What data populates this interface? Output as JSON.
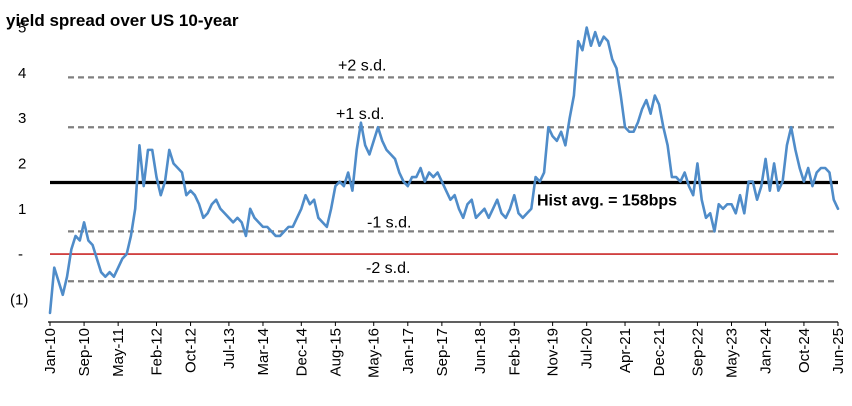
{
  "chart_data": {
    "type": "line",
    "title": "yield spread over US 10-year",
    "xlabel": "",
    "ylabel": "",
    "ylim": [
      -1.5,
      5.3
    ],
    "y_ticks": [
      {
        "v": 5,
        "label": "5"
      },
      {
        "v": 4,
        "label": "4"
      },
      {
        "v": 3,
        "label": "3"
      },
      {
        "v": 2,
        "label": "2"
      },
      {
        "v": 1,
        "label": "1"
      },
      {
        "v": 0,
        "label": "-"
      },
      {
        "v": -1,
        "label": "(1)"
      }
    ],
    "x_ticks": [
      "Jan-10",
      "Sep-10",
      "May-11",
      "Feb-12",
      "Oct-12",
      "Jul-13",
      "Mar-14",
      "Dec-14",
      "Aug-15",
      "May-16",
      "Jan-17",
      "Sep-17",
      "Jun-18",
      "Feb-19",
      "Nov-19",
      "Jul-20",
      "Apr-21",
      "Dec-21",
      "Sep-22",
      "May-23",
      "Jan-24",
      "Oct-24",
      "Jun-25"
    ],
    "colors": {
      "series": "#4f8cc9",
      "mean": "#000000",
      "sd_lines": "#808080",
      "zero": "#c00000"
    },
    "reference_lines": [
      {
        "label": "+2 s.d.",
        "value": 3.9,
        "style": "dashed"
      },
      {
        "label": "+1 s.d.",
        "value": 2.8,
        "style": "dashed"
      },
      {
        "label": "Hist avg. = 158bps",
        "value": 1.58,
        "style": "solid-bold"
      },
      {
        "label": "-1 s.d.",
        "value": 0.5,
        "style": "dashed"
      },
      {
        "label": "-2 s.d.",
        "value": -0.6,
        "style": "dashed"
      },
      {
        "label": "",
        "value": 0,
        "style": "zero"
      }
    ],
    "series": [
      {
        "name": "",
        "points": [
          [
            "Jan-10",
            -1.3
          ],
          [
            "Feb-10",
            -0.3
          ],
          [
            "Mar-10",
            -0.6
          ],
          [
            "Apr-10",
            -0.9
          ],
          [
            "May-10",
            -0.5
          ],
          [
            "Jun-10",
            0.1
          ],
          [
            "Jul-10",
            0.4
          ],
          [
            "Aug-10",
            0.3
          ],
          [
            "Sep-10",
            0.7
          ],
          [
            "Oct-10",
            0.3
          ],
          [
            "Nov-10",
            0.2
          ],
          [
            "Dec-10",
            -0.1
          ],
          [
            "Jan-11",
            -0.4
          ],
          [
            "Feb-11",
            -0.5
          ],
          [
            "Mar-11",
            -0.4
          ],
          [
            "Apr-11",
            -0.5
          ],
          [
            "May-11",
            -0.3
          ],
          [
            "Jun-11",
            -0.1
          ],
          [
            "Jul-11",
            0.0
          ],
          [
            "Aug-11",
            0.4
          ],
          [
            "Sep-11",
            1.0
          ],
          [
            "Oct-11",
            2.4
          ],
          [
            "Nov-11",
            1.5
          ],
          [
            "Dec-11",
            2.3
          ],
          [
            "Jan-12",
            2.3
          ],
          [
            "Feb-12",
            1.7
          ],
          [
            "Mar-12",
            1.3
          ],
          [
            "Apr-12",
            1.6
          ],
          [
            "May-12",
            2.3
          ],
          [
            "Jun-12",
            2.0
          ],
          [
            "Jul-12",
            1.9
          ],
          [
            "Aug-12",
            1.8
          ],
          [
            "Sep-12",
            1.3
          ],
          [
            "Oct-12",
            1.4
          ],
          [
            "Nov-12",
            1.3
          ],
          [
            "Dec-12",
            1.1
          ],
          [
            "Jan-13",
            0.8
          ],
          [
            "Feb-13",
            0.9
          ],
          [
            "Mar-13",
            1.1
          ],
          [
            "Apr-13",
            1.2
          ],
          [
            "May-13",
            1.0
          ],
          [
            "Jun-13",
            0.9
          ],
          [
            "Jul-13",
            0.8
          ],
          [
            "Aug-13",
            0.7
          ],
          [
            "Sep-13",
            0.8
          ],
          [
            "Oct-13",
            0.7
          ],
          [
            "Nov-13",
            0.4
          ],
          [
            "Dec-13",
            1.0
          ],
          [
            "Jan-14",
            0.8
          ],
          [
            "Feb-14",
            0.7
          ],
          [
            "Mar-14",
            0.6
          ],
          [
            "Apr-14",
            0.6
          ],
          [
            "May-14",
            0.5
          ],
          [
            "Jun-14",
            0.4
          ],
          [
            "Jul-14",
            0.4
          ],
          [
            "Aug-14",
            0.5
          ],
          [
            "Sep-14",
            0.6
          ],
          [
            "Oct-14",
            0.6
          ],
          [
            "Nov-14",
            0.8
          ],
          [
            "Dec-14",
            1.0
          ],
          [
            "Jan-15",
            1.3
          ],
          [
            "Feb-15",
            1.1
          ],
          [
            "Mar-15",
            1.2
          ],
          [
            "Apr-15",
            0.8
          ],
          [
            "May-15",
            0.7
          ],
          [
            "Jun-15",
            0.6
          ],
          [
            "Jul-15",
            1.0
          ],
          [
            "Aug-15",
            1.5
          ],
          [
            "Sep-15",
            1.6
          ],
          [
            "Oct-15",
            1.5
          ],
          [
            "Nov-15",
            1.8
          ],
          [
            "Dec-15",
            1.4
          ],
          [
            "Jan-16",
            2.3
          ],
          [
            "Feb-16",
            2.9
          ],
          [
            "Mar-16",
            2.4
          ],
          [
            "Apr-16",
            2.2
          ],
          [
            "May-16",
            2.5
          ],
          [
            "Jun-16",
            2.8
          ],
          [
            "Jul-16",
            2.5
          ],
          [
            "Aug-16",
            2.3
          ],
          [
            "Sep-16",
            2.2
          ],
          [
            "Oct-16",
            2.1
          ],
          [
            "Nov-16",
            1.8
          ],
          [
            "Dec-16",
            1.6
          ],
          [
            "Jan-17",
            1.5
          ],
          [
            "Feb-17",
            1.7
          ],
          [
            "Mar-17",
            1.7
          ],
          [
            "Apr-17",
            1.9
          ],
          [
            "May-17",
            1.6
          ],
          [
            "Jun-17",
            1.8
          ],
          [
            "Jul-17",
            1.7
          ],
          [
            "Aug-17",
            1.8
          ],
          [
            "Sep-17",
            1.6
          ],
          [
            "Oct-17",
            1.4
          ],
          [
            "Nov-17",
            1.2
          ],
          [
            "Dec-17",
            1.3
          ],
          [
            "Jan-18",
            1.0
          ],
          [
            "Feb-18",
            0.8
          ],
          [
            "Mar-18",
            1.1
          ],
          [
            "Apr-18",
            1.2
          ],
          [
            "May-18",
            0.8
          ],
          [
            "Jun-18",
            0.9
          ],
          [
            "Jul-18",
            1.0
          ],
          [
            "Aug-18",
            0.8
          ],
          [
            "Sep-18",
            1.0
          ],
          [
            "Oct-18",
            1.2
          ],
          [
            "Nov-18",
            0.9
          ],
          [
            "Dec-18",
            0.8
          ],
          [
            "Jan-19",
            1.0
          ],
          [
            "Feb-19",
            1.3
          ],
          [
            "Mar-19",
            0.9
          ],
          [
            "Apr-19",
            0.8
          ],
          [
            "May-19",
            0.9
          ],
          [
            "Jun-19",
            1.0
          ],
          [
            "Jul-19",
            1.7
          ],
          [
            "Aug-19",
            1.6
          ],
          [
            "Sep-19",
            1.8
          ],
          [
            "Oct-19",
            2.8
          ],
          [
            "Nov-19",
            2.6
          ],
          [
            "Dec-19",
            2.5
          ],
          [
            "Jan-20",
            2.7
          ],
          [
            "Feb-20",
            2.4
          ],
          [
            "Mar-20",
            3.0
          ],
          [
            "Apr-20",
            3.5
          ],
          [
            "May-20",
            4.7
          ],
          [
            "Jun-20",
            4.5
          ],
          [
            "Jul-20",
            5.0
          ],
          [
            "Aug-20",
            4.6
          ],
          [
            "Sep-20",
            4.9
          ],
          [
            "Oct-20",
            4.6
          ],
          [
            "Nov-20",
            4.8
          ],
          [
            "Dec-20",
            4.7
          ],
          [
            "Jan-21",
            4.3
          ],
          [
            "Feb-21",
            4.1
          ],
          [
            "Mar-21",
            3.5
          ],
          [
            "Apr-21",
            2.8
          ],
          [
            "May-21",
            2.7
          ],
          [
            "Jun-21",
            2.7
          ],
          [
            "Jul-21",
            2.9
          ],
          [
            "Aug-21",
            3.2
          ],
          [
            "Sep-21",
            3.4
          ],
          [
            "Oct-21",
            3.1
          ],
          [
            "Nov-21",
            3.5
          ],
          [
            "Dec-21",
            3.3
          ],
          [
            "Jan-22",
            2.8
          ],
          [
            "Feb-22",
            2.4
          ],
          [
            "Mar-22",
            1.7
          ],
          [
            "Apr-22",
            1.7
          ],
          [
            "May-22",
            1.6
          ],
          [
            "Jun-22",
            1.8
          ],
          [
            "Jul-22",
            1.5
          ],
          [
            "Aug-22",
            1.3
          ],
          [
            "Sep-22",
            2.0
          ],
          [
            "Oct-22",
            1.2
          ],
          [
            "Nov-22",
            0.8
          ],
          [
            "Dec-22",
            0.9
          ],
          [
            "Jan-23",
            0.5
          ],
          [
            "Feb-23",
            1.1
          ],
          [
            "Mar-23",
            1.0
          ],
          [
            "Apr-23",
            1.1
          ],
          [
            "May-23",
            1.1
          ],
          [
            "Jun-23",
            0.9
          ],
          [
            "Jul-23",
            1.3
          ],
          [
            "Aug-23",
            0.9
          ],
          [
            "Sep-23",
            1.6
          ],
          [
            "Oct-23",
            1.6
          ],
          [
            "Nov-23",
            1.2
          ],
          [
            "Dec-23",
            1.5
          ],
          [
            "Jan-24",
            2.1
          ],
          [
            "Feb-24",
            1.4
          ],
          [
            "Mar-24",
            2.0
          ],
          [
            "Apr-24",
            1.4
          ],
          [
            "May-24",
            1.6
          ],
          [
            "Jun-24",
            2.4
          ],
          [
            "Jul-24",
            2.8
          ],
          [
            "Aug-24",
            2.3
          ],
          [
            "Sep-24",
            1.9
          ],
          [
            "Oct-24",
            1.6
          ],
          [
            "Nov-24",
            1.9
          ],
          [
            "Dec-24",
            1.5
          ],
          [
            "Jan-25",
            1.8
          ],
          [
            "Feb-25",
            1.9
          ],
          [
            "Mar-25",
            1.9
          ],
          [
            "Apr-25",
            1.8
          ],
          [
            "May-25",
            1.2
          ],
          [
            "Jun-25",
            1.0
          ]
        ]
      }
    ],
    "grid": false,
    "legend": "none"
  }
}
